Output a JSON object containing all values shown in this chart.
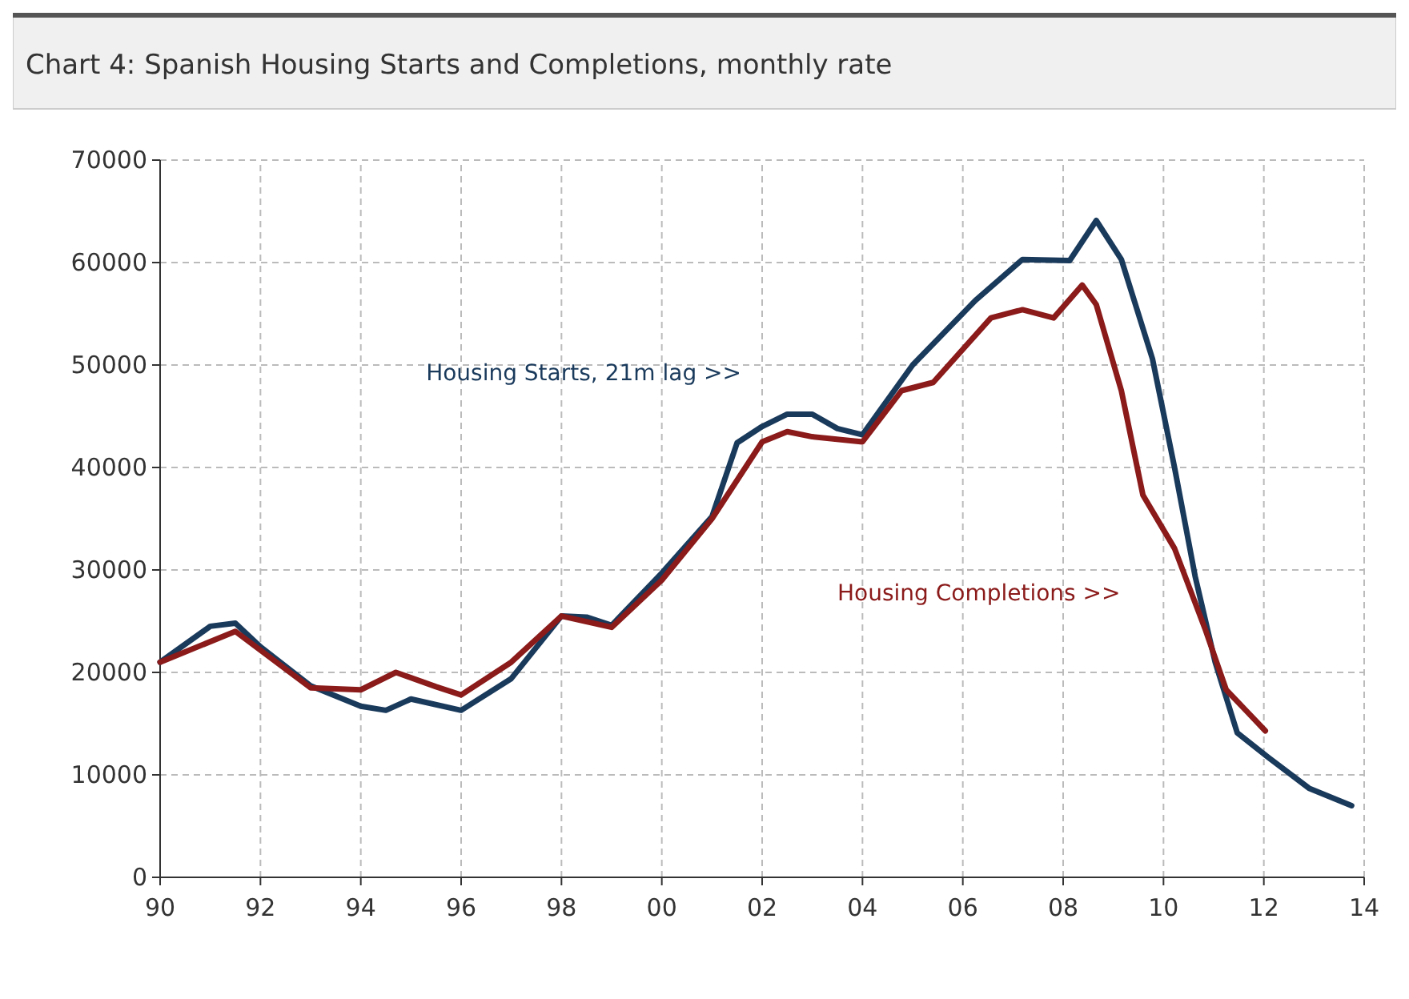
{
  "chart_data": {
    "type": "line",
    "title": "Chart 4: Spanish Housing Starts and Completions, monthly rate",
    "xlim": [
      1990,
      2014
    ],
    "xticks": [
      {
        "value": 1990,
        "label": "90"
      },
      {
        "value": 1992,
        "label": "92"
      },
      {
        "value": 1994,
        "label": "94"
      },
      {
        "value": 1996,
        "label": "96"
      },
      {
        "value": 1998,
        "label": "98"
      },
      {
        "value": 2000,
        "label": "00"
      },
      {
        "value": 2002,
        "label": "02"
      },
      {
        "value": 2004,
        "label": "04"
      },
      {
        "value": 2006,
        "label": "06"
      },
      {
        "value": 2008,
        "label": "08"
      },
      {
        "value": 2010,
        "label": "10"
      },
      {
        "value": 2012,
        "label": "12"
      },
      {
        "value": 2014,
        "label": "14"
      }
    ],
    "ylim": [
      0,
      70000
    ],
    "yticks": [
      0,
      10000,
      20000,
      30000,
      40000,
      50000,
      60000,
      70000
    ],
    "grid": true,
    "legend": false,
    "series": [
      {
        "name": "Housing Starts, 21m lag >>",
        "color": "#1a3a5c",
        "x": [
          1990,
          1991,
          1991.5,
          1992,
          1993,
          1994,
          1994.5,
          1995,
          1996,
          1997,
          1998,
          1998.5,
          1999,
          2000,
          2001,
          2001.5,
          2002,
          2002.5,
          2003,
          2003.5,
          2004,
          2005,
          2006.25,
          2007.19,
          2008.13,
          2008.66,
          2009.16,
          2009.78,
          2010.22,
          2010.63,
          2011.03,
          2011.47,
          2012.09,
          2012.9,
          2013.75
        ],
        "values": [
          21000,
          24500,
          24800,
          22500,
          18700,
          16700,
          16300,
          17400,
          16300,
          19400,
          25500,
          25400,
          24600,
          29700,
          35200,
          42400,
          44000,
          45200,
          45200,
          43800,
          43200,
          50000,
          56300,
          60300,
          60200,
          64100,
          60300,
          50600,
          40000,
          29400,
          21000,
          14100,
          11700,
          8700,
          7000
        ]
      },
      {
        "name": "Housing Completions >>",
        "color": "#8b1a1a",
        "x": [
          1990,
          1991.5,
          1993,
          1994,
          1994.7,
          1995.5,
          1996,
          1997,
          1998,
          1999,
          2000,
          2001,
          2002,
          2002.5,
          2003,
          2004,
          2004.78,
          2005.41,
          2006.56,
          2007.19,
          2007.81,
          2008.38,
          2008.66,
          2009.16,
          2009.59,
          2010.22,
          2010.84,
          2011.25,
          2011.66,
          2012.03
        ],
        "values": [
          21000,
          24000,
          18500,
          18300,
          20000,
          18600,
          17800,
          21000,
          25500,
          24400,
          29000,
          35000,
          42500,
          43500,
          43000,
          42500,
          47500,
          48300,
          54600,
          55400,
          54600,
          57800,
          55900,
          47500,
          37300,
          32100,
          24100,
          18300,
          16200,
          14300
        ]
      }
    ]
  }
}
